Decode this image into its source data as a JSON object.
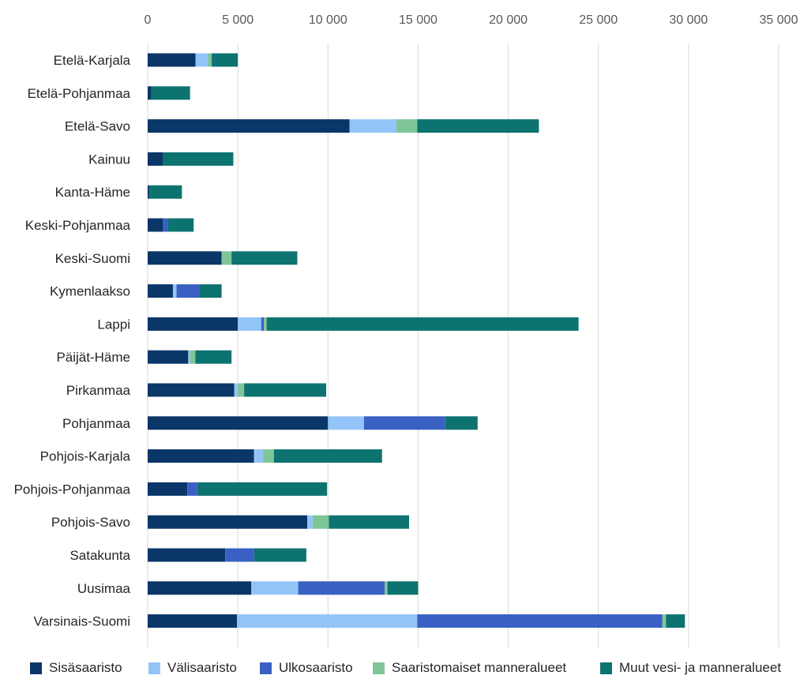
{
  "chart_data": {
    "type": "bar",
    "orientation": "horizontal",
    "stacked": true,
    "title": "",
    "xlabel": "",
    "ylabel": "",
    "xlim": [
      0,
      35000
    ],
    "x_ticks": [
      0,
      5000,
      10000,
      15000,
      20000,
      25000,
      30000,
      35000
    ],
    "x_tick_labels": [
      "0",
      "5 000",
      "10 000",
      "15 000",
      "20 000",
      "25 000",
      "30 000",
      "35 000"
    ],
    "grid": true,
    "legend_position": "bottom",
    "categories": [
      "Etelä-Karjala",
      "Etelä-Pohjanmaa",
      "Etelä-Savo",
      "Kainuu",
      "Kanta-Häme",
      "Keski-Pohjanmaa",
      "Keski-Suomi",
      "Kymenlaakso",
      "Lappi",
      "Päijät-Häme",
      "Pirkanmaa",
      "Pohjanmaa",
      "Pohjois-Karjala",
      "Pohjois-Pohjanmaa",
      "Pohjois-Savo",
      "Satakunta",
      "Uusimaa",
      "Varsinais-Suomi"
    ],
    "series": [
      {
        "name": "Sisäsaaristo",
        "color": "#0a3668",
        "values": [
          2650,
          200,
          11200,
          850,
          100,
          850,
          4100,
          1400,
          5000,
          2250,
          4800,
          10000,
          5900,
          2200,
          8850,
          4300,
          5750,
          4950
        ]
      },
      {
        "name": "Välisaaristo",
        "color": "#93c4f7",
        "values": [
          700,
          0,
          2600,
          0,
          0,
          0,
          0,
          200,
          1300,
          100,
          200,
          2000,
          500,
          0,
          300,
          0,
          2600,
          10000
        ]
      },
      {
        "name": "Ulkosaaristo",
        "color": "#3a60c4",
        "values": [
          0,
          0,
          0,
          0,
          0,
          250,
          0,
          1250,
          150,
          0,
          0,
          4500,
          0,
          550,
          0,
          1600,
          4800,
          13600
        ]
      },
      {
        "name": "Saaristomaiset manneralueet",
        "color": "#7ec697",
        "values": [
          200,
          0,
          1150,
          0,
          0,
          0,
          550,
          0,
          150,
          300,
          350,
          0,
          600,
          0,
          900,
          0,
          150,
          200
        ]
      },
      {
        "name": "Muut vesi- ja manneralueet",
        "color": "#0d7370",
        "values": [
          1450,
          2150,
          6750,
          3900,
          1800,
          1450,
          3650,
          1250,
          17300,
          2000,
          4550,
          1800,
          6000,
          7200,
          4450,
          2900,
          1700,
          1050
        ]
      }
    ]
  }
}
